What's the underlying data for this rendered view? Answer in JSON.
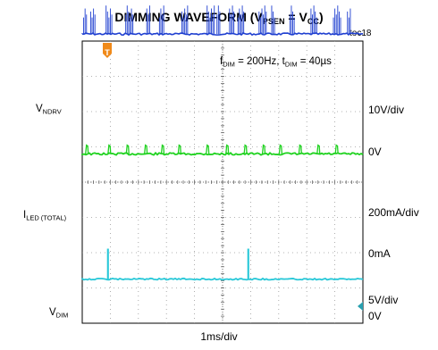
{
  "title": {
    "main": "DIMMING WAVEFORM (V",
    "sub1": "PSEN",
    "mid": " = V",
    "sub2": "CC",
    "end": ")"
  },
  "toc": "toc18",
  "annotation": {
    "f": "f",
    "f_sub": "DIM",
    "f_rest": " = 200Hz, t",
    "t_sub": "DIM",
    "t_rest": " = 40µs"
  },
  "xlabel": "1ms/div",
  "trigger_marker": "T",
  "channels": [
    {
      "name": "V",
      "name_sub": "NDRV",
      "scale": "10V/div",
      "zero": "0V",
      "color": "#1f3fd0"
    },
    {
      "name": "I",
      "name_sub": "LED (TOTAL)",
      "scale": "200mA/div",
      "zero": "0mA",
      "color": "#1fd21f"
    },
    {
      "name": "V",
      "name_sub": "DIM",
      "scale": "5V/div",
      "zero": "0V",
      "color": "#28c8d8"
    }
  ],
  "chart_data": {
    "type": "line",
    "title": "DIMMING WAVEFORM (VPSEN = VCC)",
    "xlabel": "1ms/div",
    "x_unit": "ms",
    "xlim": [
      0,
      10
    ],
    "grid": true,
    "grid_divisions": {
      "x": 10,
      "y": 8
    },
    "f_dim_hz": 200,
    "t_dim_us": 40,
    "series": [
      {
        "name": "VNDRV",
        "scale": "10V/div",
        "baseline_div": 4.2,
        "pulse_height_div": 0.85,
        "bursts_ms": [
          0.05,
          0.3,
          0.85,
          1.55,
          2.3,
          2.75,
          3.55,
          4.45,
          4.8,
          5.25,
          5.55,
          6.3,
          6.75,
          7.4,
          8.15,
          8.95,
          9.45
        ]
      },
      {
        "name": "ILED (TOTAL)",
        "scale": "200mA/div",
        "baseline_div": 0.8,
        "pulse_height_div": 0.25,
        "pulses_ms": [
          0.15,
          0.95,
          1.6,
          2.25,
          2.85,
          3.45,
          4.45,
          5.15,
          5.8,
          6.45,
          7.05,
          7.75,
          8.4,
          9.05
        ]
      },
      {
        "name": "VDIM",
        "scale": "5V/div",
        "baseline_div": -2.75,
        "pulse_height_div": 0.85,
        "pulses_ms": [
          0.9,
          5.9
        ]
      }
    ]
  }
}
